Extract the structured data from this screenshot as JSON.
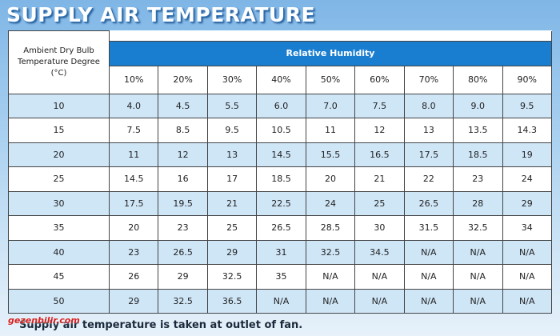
{
  "title": "SUPPLY AIR TEMPERATURE",
  "table": {
    "corner_header": "Ambient Dry Bulb Temperature Degree (°C)",
    "group_header": "Relative Humidity",
    "columns": [
      "10%",
      "20%",
      "30%",
      "40%",
      "50%",
      "60%",
      "70%",
      "80%",
      "90%"
    ],
    "rows": [
      [
        "10",
        "4.0",
        "4.5",
        "5.5",
        "6.0",
        "7.0",
        "7.5",
        "8.0",
        "9.0",
        "9.5"
      ],
      [
        "15",
        "7.5",
        "8.5",
        "9.5",
        "10.5",
        "11",
        "12",
        "13",
        "13.5",
        "14.3"
      ],
      [
        "20",
        "11",
        "12",
        "13",
        "14.5",
        "15.5",
        "16.5",
        "17.5",
        "18.5",
        "19"
      ],
      [
        "25",
        "14.5",
        "16",
        "17",
        "18.5",
        "20",
        "21",
        "22",
        "23",
        "24"
      ],
      [
        "30",
        "17.5",
        "19.5",
        "21",
        "22.5",
        "24",
        "25",
        "26.5",
        "28",
        "29"
      ],
      [
        "35",
        "20",
        "23",
        "25",
        "26.5",
        "28.5",
        "30",
        "31.5",
        "32.5",
        "34"
      ],
      [
        "40",
        "23",
        "26.5",
        "29",
        "31",
        "32.5",
        "34.5",
        "N/A",
        "N/A",
        "N/A"
      ],
      [
        "45",
        "26",
        "29",
        "32.5",
        "35",
        "N/A",
        "N/A",
        "N/A",
        "N/A",
        "N/A"
      ],
      [
        "50",
        "29",
        "32.5",
        "36.5",
        "N/A",
        "N/A",
        "N/A",
        "N/A",
        "N/A",
        "N/A"
      ]
    ]
  },
  "footnote": "Supply air temperature is taken at outlet of fan.",
  "watermark": "gezenbilir.com"
}
